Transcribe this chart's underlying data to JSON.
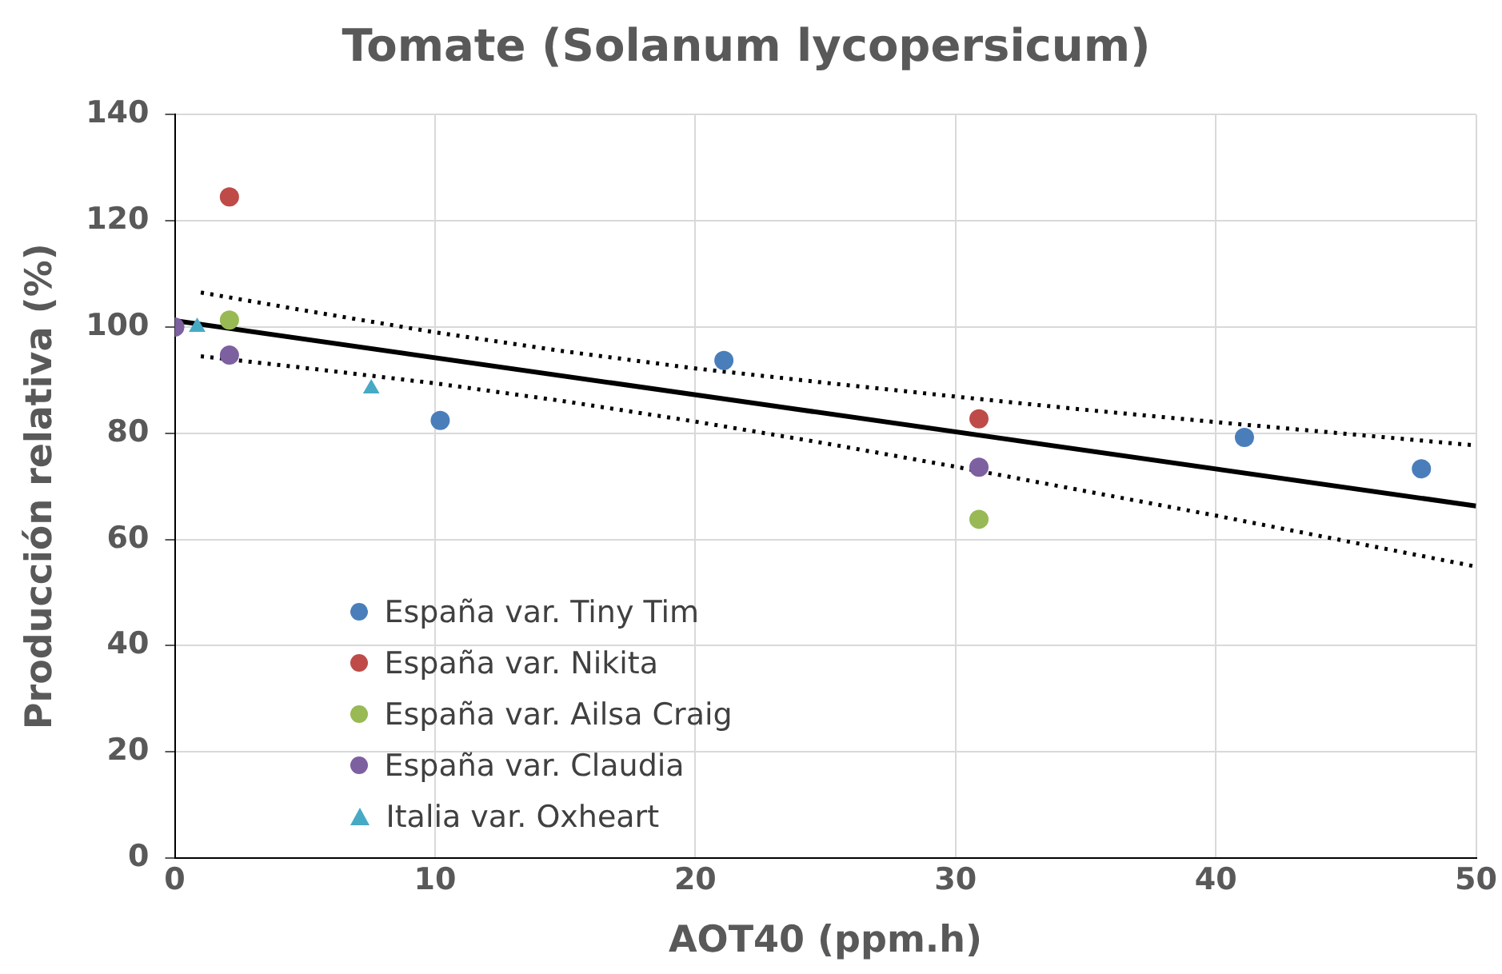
{
  "chart_data": {
    "type": "scatter",
    "title": "Tomate (Solanum lycopersicum)",
    "xlabel": "AOT40 (ppm.h)",
    "ylabel": "Producción relativa (%)",
    "xlim": [
      0,
      50
    ],
    "xticks": [
      0,
      10,
      20,
      30,
      40,
      50
    ],
    "ylim": [
      0,
      140
    ],
    "yticks": [
      0,
      20,
      40,
      60,
      80,
      100,
      120,
      140
    ],
    "grid": true,
    "legend": "bottom left",
    "series": [
      {
        "name": "España var. Tiny Tim",
        "color": "#4a7ebb",
        "marker": "circle",
        "x": [
          10.2,
          21.1,
          41.1,
          47.9
        ],
        "values": [
          82.4,
          93.7,
          79.2,
          73.3
        ]
      },
      {
        "name": "España var. Nikita",
        "color": "#be4b48",
        "marker": "circle",
        "x": [
          2.1,
          30.9
        ],
        "values": [
          124.5,
          82.7
        ]
      },
      {
        "name": "España var. Ailsa Craig",
        "color": "#98b954",
        "marker": "circle",
        "x": [
          2.1,
          30.9
        ],
        "values": [
          101.3,
          63.8
        ]
      },
      {
        "name": "España var. Claudia",
        "color": "#7d60a0",
        "marker": "circle",
        "x": [
          0,
          2.1,
          30.9
        ],
        "values": [
          100,
          94.7,
          73.6
        ]
      },
      {
        "name": "Italia var. Oxheart",
        "color": "#46aac5",
        "marker": "triangle",
        "x": [
          0.86,
          7.55
        ],
        "values": [
          100,
          88.4
        ]
      },
      {
        "type": "line",
        "color": "#000000",
        "marker": "none",
        "line_style": "solid",
        "x": [
          0,
          50
        ],
        "values": [
          101.2,
          66.3
        ]
      },
      {
        "type": "line",
        "color": "#000000",
        "marker": "none",
        "line_style": "dotted",
        "x": [
          1,
          5,
          10,
          15,
          20,
          25,
          30,
          35,
          40,
          45,
          50
        ],
        "values": [
          106.5,
          103.1,
          99.0,
          95.4,
          92.2,
          89.5,
          86.9,
          84.4,
          82.1,
          79.9,
          77.7
        ]
      },
      {
        "type": "line",
        "color": "#000000",
        "marker": "none",
        "line_style": "dotted",
        "x": [
          1,
          5,
          10,
          15,
          20,
          25,
          30,
          35,
          40,
          45,
          50
        ],
        "values": [
          94.5,
          92.3,
          89.4,
          86.0,
          82.2,
          78.1,
          73.7,
          69.1,
          64.5,
          59.7,
          54.9
        ]
      }
    ]
  }
}
